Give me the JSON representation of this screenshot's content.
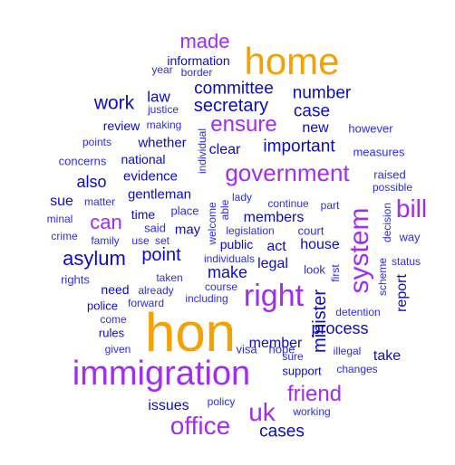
{
  "colors": {
    "orange": "#f5a100",
    "purple": "#a02df0",
    "blue": "#0a0aca",
    "lightblue": "#2d2de6"
  },
  "words": [
    {
      "text": "hon",
      "color": "orange"
    },
    {
      "text": "home",
      "color": "orange"
    },
    {
      "text": "immigration",
      "color": "purple"
    },
    {
      "text": "right",
      "color": "purple"
    },
    {
      "text": "government",
      "color": "purple"
    },
    {
      "text": "system",
      "color": "purple"
    },
    {
      "text": "office",
      "color": "purple"
    },
    {
      "text": "uk",
      "color": "purple"
    },
    {
      "text": "friend",
      "color": "purple"
    },
    {
      "text": "bill",
      "color": "purple"
    },
    {
      "text": "ensure",
      "color": "purple"
    },
    {
      "text": "made",
      "color": "purple"
    },
    {
      "text": "can",
      "color": "purple"
    },
    {
      "text": "asylum",
      "color": "blue"
    },
    {
      "text": "minister",
      "color": "blue"
    },
    {
      "text": "secretary",
      "color": "blue"
    },
    {
      "text": "committee",
      "color": "blue"
    },
    {
      "text": "number",
      "color": "blue"
    },
    {
      "text": "work",
      "color": "blue"
    },
    {
      "text": "case",
      "color": "blue"
    },
    {
      "text": "point",
      "color": "blue"
    },
    {
      "text": "important",
      "color": "blue"
    },
    {
      "text": "cases",
      "color": "blue"
    },
    {
      "text": "process",
      "color": "blue"
    },
    {
      "text": "make",
      "color": "blue"
    },
    {
      "text": "members",
      "color": "blue"
    },
    {
      "text": "member",
      "color": "blue"
    },
    {
      "text": "also",
      "color": "blue"
    },
    {
      "text": "law",
      "color": "blue"
    },
    {
      "text": "new",
      "color": "blue"
    },
    {
      "text": "clear",
      "color": "blue"
    },
    {
      "text": "whether",
      "color": "blue"
    },
    {
      "text": "sue",
      "color": "blue"
    },
    {
      "text": "report",
      "color": "blue"
    },
    {
      "text": "house",
      "color": "blue"
    },
    {
      "text": "issues",
      "color": "blue"
    },
    {
      "text": "legal",
      "color": "blue"
    },
    {
      "text": "may",
      "color": "blue"
    },
    {
      "text": "act",
      "color": "blue"
    },
    {
      "text": "take",
      "color": "blue"
    },
    {
      "text": "evidence",
      "color": "blue"
    },
    {
      "text": "gentleman",
      "color": "blue"
    },
    {
      "text": "national",
      "color": "blue"
    },
    {
      "text": "information",
      "color": "blue"
    },
    {
      "text": "review",
      "color": "blue"
    },
    {
      "text": "need",
      "color": "blue"
    },
    {
      "text": "time",
      "color": "blue"
    },
    {
      "text": "public",
      "color": "blue"
    },
    {
      "text": "support",
      "color": "blue"
    },
    {
      "text": "rules",
      "color": "blue"
    },
    {
      "text": "police",
      "color": "blue"
    },
    {
      "text": "policy",
      "color": "lightblue"
    },
    {
      "text": "justice",
      "color": "lightblue"
    },
    {
      "text": "making",
      "color": "lightblue"
    },
    {
      "text": "border",
      "color": "lightblue"
    },
    {
      "text": "year",
      "color": "lightblue"
    },
    {
      "text": "however",
      "color": "lightblue"
    },
    {
      "text": "measures",
      "color": "lightblue"
    },
    {
      "text": "points",
      "color": "lightblue"
    },
    {
      "text": "concerns",
      "color": "lightblue"
    },
    {
      "text": "individual",
      "color": "lightblue"
    },
    {
      "text": "raised",
      "color": "lightblue"
    },
    {
      "text": "possible",
      "color": "lightblue"
    },
    {
      "text": "matter",
      "color": "lightblue"
    },
    {
      "text": "lady",
      "color": "lightblue"
    },
    {
      "text": "able",
      "color": "lightblue"
    },
    {
      "text": "welcome",
      "color": "lightblue"
    },
    {
      "text": "continue",
      "color": "lightblue"
    },
    {
      "text": "part",
      "color": "lightblue"
    },
    {
      "text": "decision",
      "color": "lightblue"
    },
    {
      "text": "way",
      "color": "lightblue"
    },
    {
      "text": "place",
      "color": "lightblue"
    },
    {
      "text": "said",
      "color": "lightblue"
    },
    {
      "text": "legislation",
      "color": "lightblue"
    },
    {
      "text": "court",
      "color": "lightblue"
    },
    {
      "text": "minal",
      "color": "lightblue"
    },
    {
      "text": "crime",
      "color": "lightblue"
    },
    {
      "text": "family",
      "color": "lightblue"
    },
    {
      "text": "use",
      "color": "lightblue"
    },
    {
      "text": "set",
      "color": "lightblue"
    },
    {
      "text": "individuals",
      "color": "lightblue"
    },
    {
      "text": "status",
      "color": "lightblue"
    },
    {
      "text": "rights",
      "color": "lightblue"
    },
    {
      "text": "taken",
      "color": "lightblue"
    },
    {
      "text": "already",
      "color": "lightblue"
    },
    {
      "text": "look",
      "color": "lightblue"
    },
    {
      "text": "first",
      "color": "lightblue"
    },
    {
      "text": "scheme",
      "color": "lightblue"
    },
    {
      "text": "course",
      "color": "lightblue"
    },
    {
      "text": "forward",
      "color": "lightblue"
    },
    {
      "text": "including",
      "color": "lightblue"
    },
    {
      "text": "detention",
      "color": "lightblue"
    },
    {
      "text": "come",
      "color": "lightblue"
    },
    {
      "text": "visa",
      "color": "lightblue"
    },
    {
      "text": "hope",
      "color": "lightblue"
    },
    {
      "text": "given",
      "color": "lightblue"
    },
    {
      "text": "sure",
      "color": "lightblue"
    },
    {
      "text": "illegal",
      "color": "lightblue"
    },
    {
      "text": "changes",
      "color": "lightblue"
    },
    {
      "text": "working",
      "color": "lightblue"
    }
  ]
}
